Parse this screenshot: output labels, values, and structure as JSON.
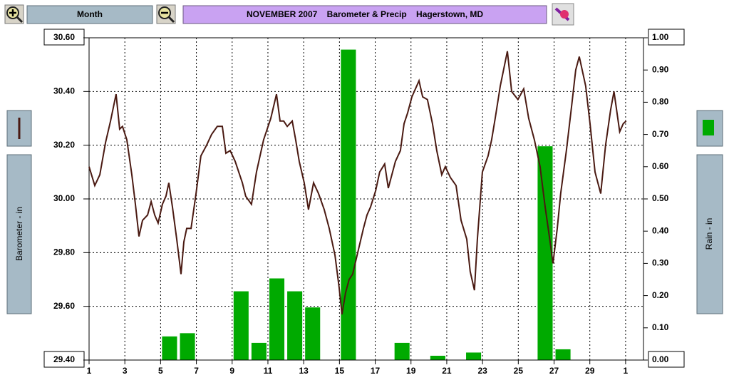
{
  "toolbar": {
    "period": "Month"
  },
  "chart_data": {
    "type": "line",
    "title": "NOVEMBER 2007    Barometer & Precip    Hagerstown, MD",
    "ylabel": "Barometer - in",
    "y2label": "Rain - in",
    "xlim": [
      1,
      32
    ],
    "xticks": [
      1,
      3,
      5,
      7,
      9,
      11,
      13,
      15,
      17,
      19,
      21,
      23,
      25,
      27,
      29,
      {
        "value": 31,
        "label": "1"
      }
    ],
    "ylim": [
      29.4,
      30.6
    ],
    "yticks": [
      {
        "value": 29.4,
        "label": "29.40"
      },
      {
        "value": 29.6,
        "label": "29.60"
      },
      {
        "value": 29.8,
        "label": "29.80"
      },
      {
        "value": 30.0,
        "label": "30.00"
      },
      {
        "value": 30.2,
        "label": "30.20"
      },
      {
        "value": 30.4,
        "label": "30.40"
      },
      {
        "value": 30.6,
        "label": "30.60"
      }
    ],
    "y2lim": [
      0,
      1
    ],
    "y2ticks": [
      {
        "value": 0,
        "label": "0.00"
      },
      {
        "value": 0.1,
        "label": "0.10"
      },
      {
        "value": 0.2,
        "label": "0.20"
      },
      {
        "value": 0.3,
        "label": "0.30"
      },
      {
        "value": 0.4,
        "label": "0.40"
      },
      {
        "value": 0.5,
        "label": "0.50"
      },
      {
        "value": 0.6,
        "label": "0.60"
      },
      {
        "value": 0.7,
        "label": "0.70"
      },
      {
        "value": 0.8,
        "label": "0.80"
      },
      {
        "value": 0.9,
        "label": "0.90"
      },
      {
        "value": 1,
        "label": "1.00"
      }
    ],
    "grid": true,
    "series": [
      {
        "type": "line",
        "color": "#4a1a12",
        "axis": "y",
        "x": [
          1.0,
          1.32,
          1.6,
          1.92,
          2.2,
          2.51,
          2.71,
          2.87,
          3.11,
          3.39,
          3.59,
          3.79,
          3.99,
          4.27,
          4.47,
          4.67,
          4.86,
          5.1,
          5.3,
          5.46,
          5.66,
          5.9,
          6.14,
          6.3,
          6.46,
          6.7,
          6.98,
          7.25,
          7.57,
          7.85,
          8.17,
          8.45,
          8.65,
          8.89,
          9.17,
          9.57,
          9.76,
          10.08,
          10.36,
          10.76,
          11.16,
          11.48,
          11.68,
          11.88,
          12.08,
          12.36,
          12.55,
          12.75,
          13.03,
          13.27,
          13.55,
          13.83,
          14.15,
          14.43,
          14.75,
          14.98,
          15.14,
          15.34,
          15.54,
          15.74,
          16.02,
          16.34,
          16.54,
          16.74,
          17.02,
          17.25,
          17.53,
          17.73,
          17.93,
          18.13,
          18.41,
          18.61,
          18.81,
          19.05,
          19.45,
          19.65,
          19.92,
          20.2,
          20.44,
          20.72,
          20.92,
          21.2,
          21.52,
          21.8,
          22.12,
          22.31,
          22.55,
          22.71,
          22.99,
          23.31,
          23.51,
          23.71,
          23.99,
          24.39,
          24.63,
          24.98,
          25.3,
          25.58,
          25.9,
          26.22,
          26.5,
          26.78,
          26.94,
          27.18,
          27.37,
          27.69,
          27.97,
          28.21,
          28.41,
          28.77,
          29.01,
          29.29,
          29.61,
          29.88,
          30.16,
          30.35,
          30.67,
          30.87,
          31.03
        ],
        "values": [
          30.12,
          30.05,
          30.09,
          30.21,
          30.29,
          30.39,
          30.26,
          30.27,
          30.22,
          30.09,
          29.98,
          29.86,
          29.92,
          29.94,
          29.99,
          29.94,
          29.91,
          29.98,
          30.01,
          30.06,
          29.97,
          29.85,
          29.72,
          29.84,
          29.89,
          29.89,
          30.02,
          30.16,
          30.2,
          30.24,
          30.27,
          30.27,
          30.17,
          30.18,
          30.14,
          30.06,
          30.01,
          29.98,
          30.1,
          30.22,
          30.3,
          30.39,
          30.29,
          30.29,
          30.27,
          30.29,
          30.22,
          30.14,
          30.06,
          29.96,
          30.06,
          30.02,
          29.96,
          29.89,
          29.79,
          29.67,
          29.57,
          29.65,
          29.7,
          29.72,
          29.8,
          29.89,
          29.94,
          29.97,
          30.03,
          30.1,
          30.13,
          30.04,
          30.09,
          30.14,
          30.18,
          30.28,
          30.32,
          30.38,
          30.44,
          30.38,
          30.37,
          30.28,
          30.18,
          30.09,
          30.12,
          30.08,
          30.05,
          29.92,
          29.85,
          29.73,
          29.66,
          29.85,
          30.1,
          30.16,
          30.22,
          30.3,
          30.42,
          30.55,
          30.4,
          30.37,
          30.41,
          30.3,
          30.22,
          30.12,
          29.97,
          29.84,
          29.76,
          29.89,
          30.02,
          30.18,
          30.34,
          30.48,
          30.53,
          30.42,
          30.28,
          30.1,
          30.02,
          30.2,
          30.33,
          30.4,
          30.25,
          30.28,
          30.29
        ]
      },
      {
        "type": "bar",
        "color": "#00aa00",
        "axis": "y2",
        "x": [
          1,
          2,
          3,
          4,
          5,
          6,
          7,
          8,
          9,
          10,
          11,
          12,
          13,
          14,
          15,
          16,
          17,
          18,
          19,
          20,
          21,
          22,
          23,
          24,
          25,
          26,
          27,
          28,
          29,
          30
        ],
        "values": [
          0,
          0,
          0,
          0,
          0.07,
          0.08,
          0,
          0,
          0.21,
          0.05,
          0.25,
          0.21,
          0.16,
          0,
          0.96,
          0,
          0,
          0.05,
          0,
          0.01,
          0,
          0.02,
          0,
          0,
          0,
          0.66,
          0.03,
          0,
          0,
          0
        ]
      }
    ]
  }
}
